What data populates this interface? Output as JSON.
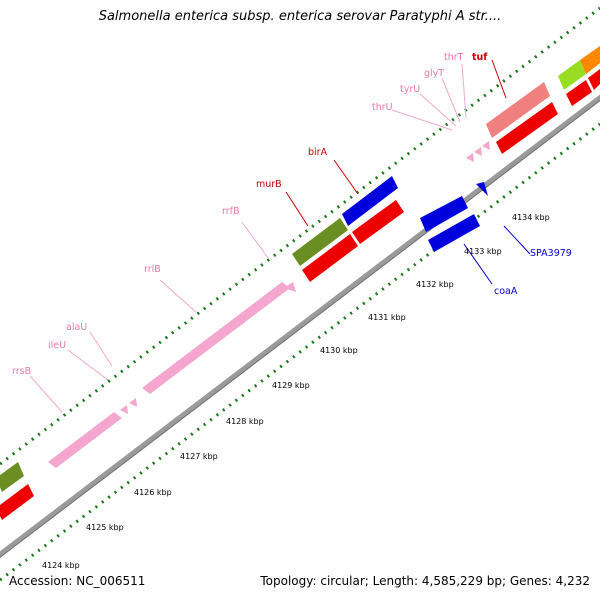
{
  "title": "Salmonella enterica subsp. enterica serovar Paratyphi A str....",
  "footer": {
    "accession": "Accession: NC_006511",
    "summary": "Topology: circular; Length: 4,585,229 bp; Genes: 4,232"
  },
  "colors": {
    "rRNA": "#f4a6cf",
    "tRNA": "#f4a6cf",
    "cds_forward": "#ee0000",
    "cds_reverse": "#0000dd",
    "cds_green": "#6b8e23",
    "cds_salmon": "#f08080",
    "cds_lime": "#99dd22",
    "cds_orange": "#ff8800",
    "label_red": "#cc0000",
    "label_pink": "#e67aa8",
    "label_blue": "#0000cc",
    "tick": "#006600",
    "backbone": "#999999"
  },
  "kbp_labels": [
    "4124 kbp",
    "4125 kbp",
    "4126 kbp",
    "4127 kbp",
    "4128 kbp",
    "4129 kbp",
    "4130 kbp",
    "4131 kbp",
    "4132 kbp",
    "4133 kbp",
    "4134 kbp"
  ],
  "gene_labels": [
    "rrsB",
    "ileU",
    "alaU",
    "rrlB",
    "rrfB",
    "murB",
    "birA",
    "thrU",
    "tyrU",
    "glyT",
    "thrT",
    "tuf",
    "coaA",
    "SPA3979"
  ]
}
